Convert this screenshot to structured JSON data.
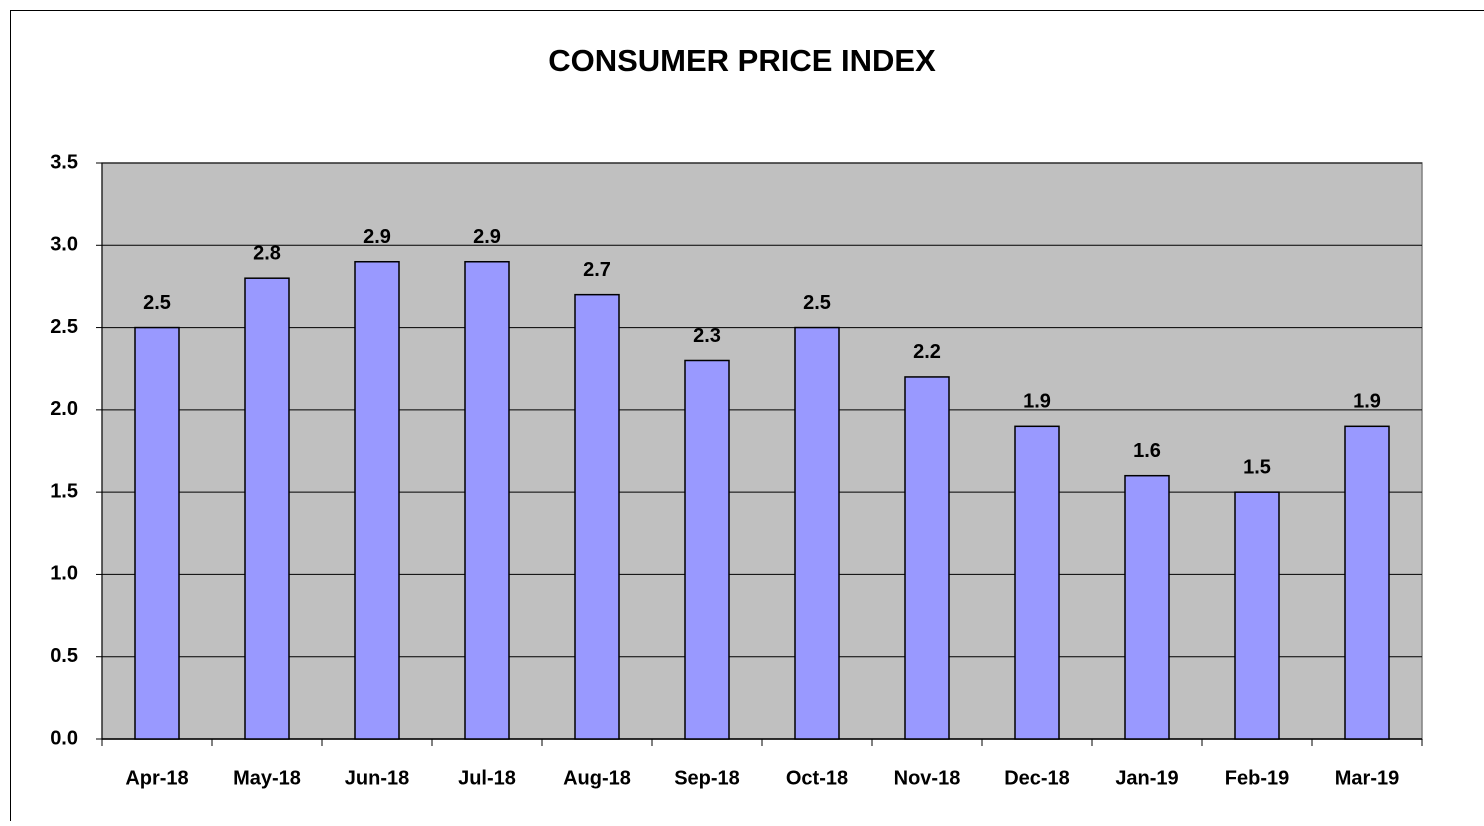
{
  "chart_data": {
    "type": "bar",
    "title": "CONSUMER PRICE INDEX",
    "categories": [
      "Apr-18",
      "May-18",
      "Jun-18",
      "Jul-18",
      "Aug-18",
      "Sep-18",
      "Oct-18",
      "Nov-18",
      "Dec-18",
      "Jan-19",
      "Feb-19",
      "Mar-19"
    ],
    "values": [
      2.5,
      2.8,
      2.9,
      2.9,
      2.7,
      2.3,
      2.5,
      2.2,
      1.9,
      1.6,
      1.5,
      1.9
    ],
    "color": "#9999ff",
    "ylim": [
      0,
      3.5
    ],
    "yticks": [
      {
        "value": 0,
        "label": "0.0"
      },
      0.5,
      {
        "value": 1,
        "label": "1.0"
      },
      1.5,
      {
        "value": 2,
        "label": "2.0"
      },
      2.5,
      {
        "value": 3,
        "label": "3.0"
      },
      3.5
    ],
    "grid": true
  }
}
